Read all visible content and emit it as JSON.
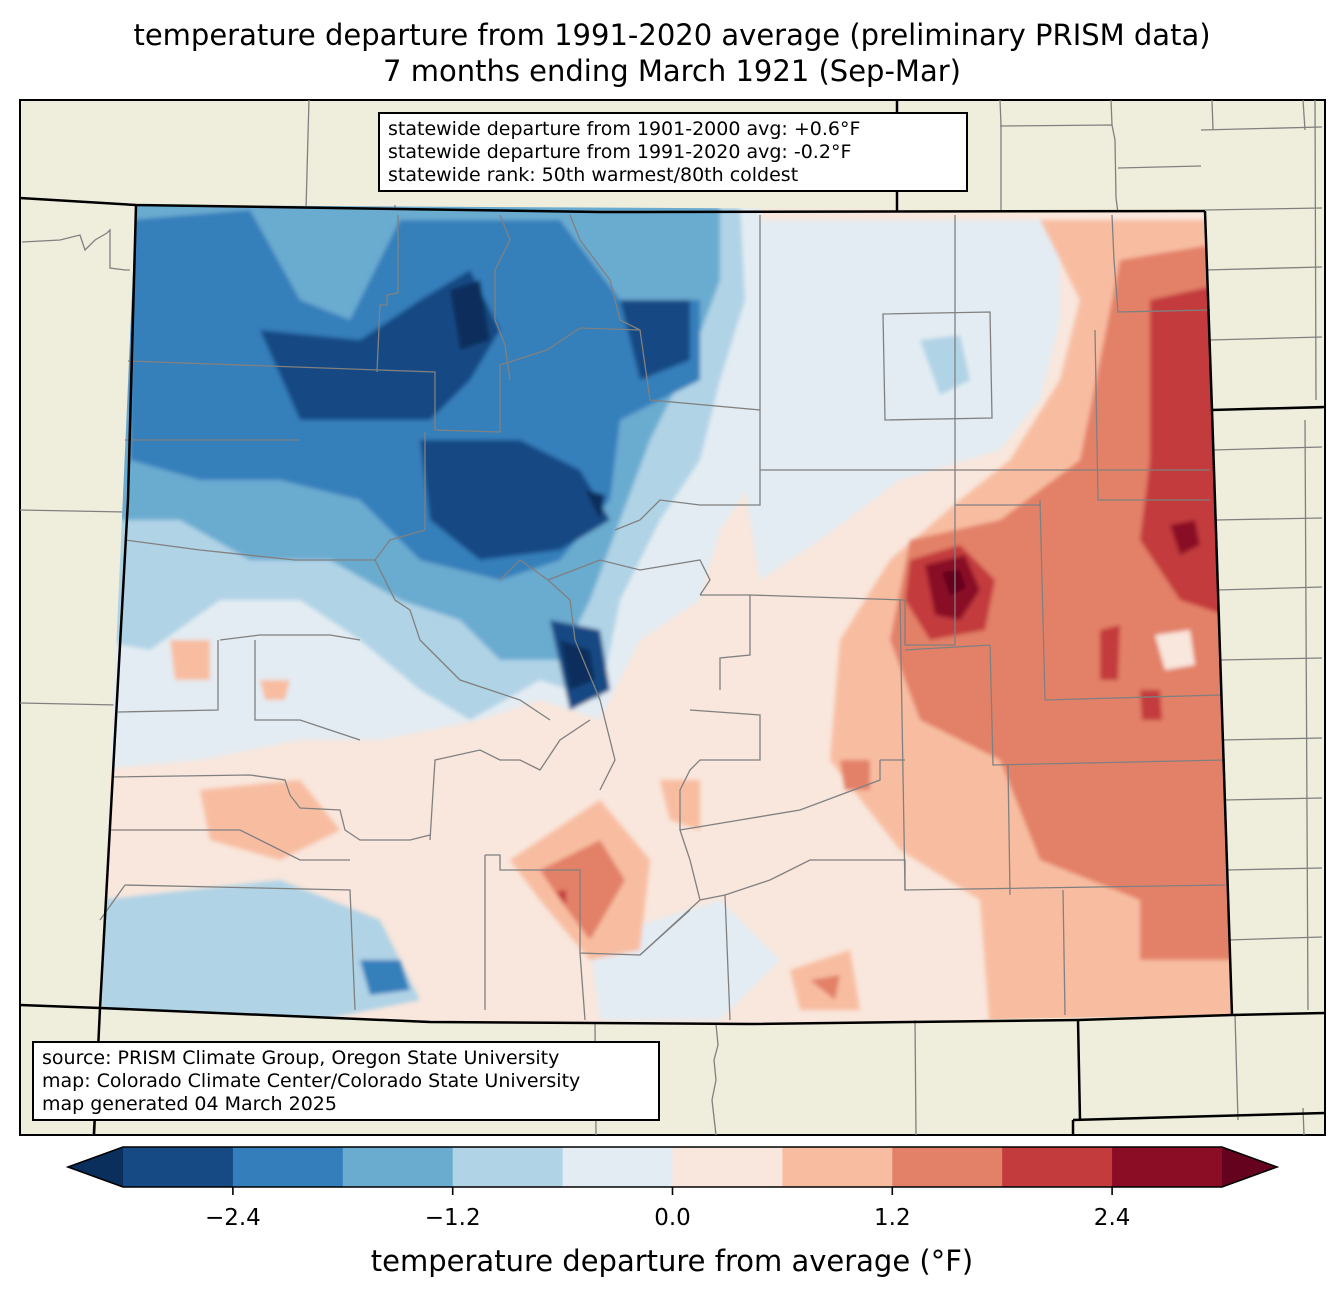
{
  "title": {
    "line1": "temperature departure from 1991-2020 average (preliminary PRISM data)",
    "line2": "7 months ending March 1921 (Sep-Mar)"
  },
  "stats_box": {
    "line1": "statewide departure from 1901-2000 avg: +0.6°F",
    "line2": "statewide departure from 1991-2020 avg: -0.2°F",
    "line3": "statewide rank: 50th warmest/80th coldest"
  },
  "source_box": {
    "line1": "source: PRISM Climate Group, Oregon State University",
    "line2": "map: Colorado Climate Center/Colorado State University",
    "line3": "map generated 04 March 2025"
  },
  "colors": {
    "land_background": "#efeedc",
    "county_line": "#808080",
    "state_line": "#000000"
  },
  "colorbar": {
    "label": "temperature departure from average (°F)",
    "extend": "both",
    "levels": [
      -3.0,
      -2.4,
      -1.8,
      -1.2,
      -0.6,
      0.0,
      0.6,
      1.2,
      1.8,
      2.4,
      3.0
    ],
    "colors": [
      "#164a84",
      "#347fbb",
      "#6aabd0",
      "#b0d3e6",
      "#e3ecf3",
      "#f9e6dc",
      "#f8bda1",
      "#e38068",
      "#c33b3c",
      "#8a0c25"
    ],
    "under_color": "#0a2f5c",
    "over_color": "#65031e",
    "ticks": [
      "−2.4",
      "−1.2",
      "0.0",
      "1.2",
      "2.4"
    ]
  },
  "chart_data": {
    "type": "heatmap",
    "title": "temperature departure from 1991-2020 average (preliminary PRISM data) — 7 months ending March 1921 (Sep-Mar)",
    "region": "Colorado",
    "variable": "temperature departure from average (°F)",
    "range": [
      -3.0,
      3.0
    ],
    "statewide_departure_1901_2000": 0.6,
    "statewide_departure_1991_2020": -0.2,
    "rank_warmest": 50,
    "rank_coldest": 80,
    "pattern": {
      "northwest_and_central_mountains": "cold (-1.2 to below -3.0)",
      "southwest": "near normal, mixed slightly cold and slightly warm (-1.2 to +1.2)",
      "northeast_plains": "near normal (-0.6 to +0.6)",
      "eastern_plains": "warm (+0.6 to +2.4)",
      "east_central_hotspot": "very warm (above +3.0)",
      "east_border": "warm (+1.8 to +3.0)"
    }
  }
}
